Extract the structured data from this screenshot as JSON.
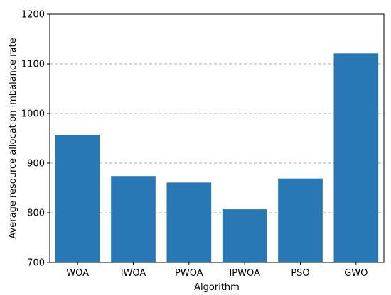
{
  "chart_data": {
    "type": "bar",
    "categories": [
      "WOA",
      "IWOA",
      "PWOA",
      "IPWOA",
      "PSO",
      "GWO"
    ],
    "values": [
      957,
      874,
      861,
      807,
      869,
      1121
    ],
    "title": "",
    "xlabel": "Algorithm",
    "ylabel": "Average resource allocation imbalance rate",
    "ylim": [
      700,
      1200
    ],
    "yticks": [
      700,
      800,
      900,
      1000,
      1100,
      1200
    ],
    "grid": "y-dashed",
    "bar_color": "#2878b5",
    "grid_color": "#b0b0b0"
  }
}
